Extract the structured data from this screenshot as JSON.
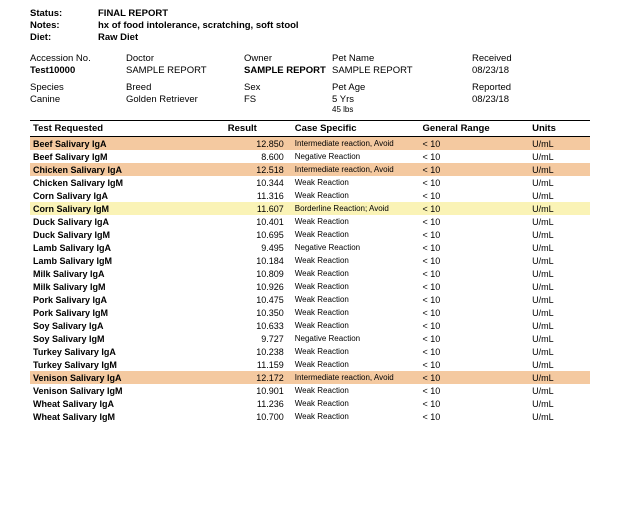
{
  "header": {
    "status_label": "Status:",
    "status_value": "FINAL REPORT",
    "notes_label": "Notes:",
    "notes_value": "hx of food intolerance, scratching, soft stool",
    "diet_label": "Diet:",
    "diet_value": "Raw Diet"
  },
  "info1": {
    "accession_label": "Accession No.",
    "accession_value": "Test10000",
    "doctor_label": "Doctor",
    "doctor_value": "SAMPLE REPORT",
    "owner_label": "Owner",
    "owner_value": "SAMPLE REPORT",
    "pet_name_label": "Pet Name",
    "pet_name_value": "SAMPLE REPORT",
    "received_label": "Received",
    "received_value": "08/23/18"
  },
  "info2": {
    "species_label": "Species",
    "species_value": "Canine",
    "breed_label": "Breed",
    "breed_value": "Golden Retriever",
    "sex_label": "Sex",
    "sex_value": "FS",
    "age_label": "Pet Age",
    "age_value": "5 Yrs",
    "weight_value": "45 lbs",
    "reported_label": "Reported",
    "reported_value": "08/23/18"
  },
  "columns": {
    "test": "Test Requested",
    "result": "Result",
    "case": "Case Specific",
    "general": "General Range",
    "units": "Units"
  },
  "colors": {
    "highlight_orange": "#f4c9a0",
    "highlight_yellow": "#faf3b6",
    "border": "#000000",
    "text": "#000000",
    "background": "#ffffff"
  },
  "rows": [
    {
      "test": "Beef Salivary IgA",
      "result": "12.850",
      "case": "Intermediate reaction, Avoid",
      "general": "< 10",
      "units": "U/mL",
      "hl": "orange"
    },
    {
      "test": "Beef Salivary IgM",
      "result": "8.600",
      "case": "Negative Reaction",
      "general": "< 10",
      "units": "U/mL",
      "hl": ""
    },
    {
      "test": "Chicken Salivary IgA",
      "result": "12.518",
      "case": "Intermediate reaction, Avoid",
      "general": "< 10",
      "units": "U/mL",
      "hl": "orange"
    },
    {
      "test": "Chicken Salivary IgM",
      "result": "10.344",
      "case": "Weak Reaction",
      "general": "< 10",
      "units": "U/mL",
      "hl": ""
    },
    {
      "test": "Corn Salivary IgA",
      "result": "11.316",
      "case": "Weak Reaction",
      "general": "< 10",
      "units": "U/mL",
      "hl": ""
    },
    {
      "test": "Corn Salivary IgM",
      "result": "11.607",
      "case": "Borderline Reaction; Avoid",
      "general": "< 10",
      "units": "U/mL",
      "hl": "yellow"
    },
    {
      "test": "Duck Salivary IgA",
      "result": "10.401",
      "case": "Weak Reaction",
      "general": "< 10",
      "units": "U/mL",
      "hl": ""
    },
    {
      "test": "Duck Salivary IgM",
      "result": "10.695",
      "case": "Weak Reaction",
      "general": "< 10",
      "units": "U/mL",
      "hl": ""
    },
    {
      "test": "Lamb Salivary IgA",
      "result": "9.495",
      "case": "Negative Reaction",
      "general": "< 10",
      "units": "U/mL",
      "hl": ""
    },
    {
      "test": "Lamb Salivary IgM",
      "result": "10.184",
      "case": "Weak Reaction",
      "general": "< 10",
      "units": "U/mL",
      "hl": ""
    },
    {
      "test": "Milk Salivary IgA",
      "result": "10.809",
      "case": "Weak Reaction",
      "general": "< 10",
      "units": "U/mL",
      "hl": ""
    },
    {
      "test": "Milk Salivary IgM",
      "result": "10.926",
      "case": "Weak Reaction",
      "general": "< 10",
      "units": "U/mL",
      "hl": ""
    },
    {
      "test": "Pork Salivary IgA",
      "result": "10.475",
      "case": "Weak Reaction",
      "general": "< 10",
      "units": "U/mL",
      "hl": ""
    },
    {
      "test": "Pork Salivary IgM",
      "result": "10.350",
      "case": "Weak Reaction",
      "general": "< 10",
      "units": "U/mL",
      "hl": ""
    },
    {
      "test": "Soy Salivary IgA",
      "result": "10.633",
      "case": "Weak Reaction",
      "general": "< 10",
      "units": "U/mL",
      "hl": ""
    },
    {
      "test": "Soy Salivary IgM",
      "result": "9.727",
      "case": "Negative Reaction",
      "general": "< 10",
      "units": "U/mL",
      "hl": ""
    },
    {
      "test": "Turkey Salivary IgA",
      "result": "10.238",
      "case": "Weak Reaction",
      "general": "< 10",
      "units": "U/mL",
      "hl": ""
    },
    {
      "test": "Turkey Salivary IgM",
      "result": "11.159",
      "case": "Weak Reaction",
      "general": "< 10",
      "units": "U/mL",
      "hl": ""
    },
    {
      "test": "Venison Salivary IgA",
      "result": "12.172",
      "case": "Intermediate reaction, Avoid",
      "general": "< 10",
      "units": "U/mL",
      "hl": "orange"
    },
    {
      "test": "Venison Salivary IgM",
      "result": "10.901",
      "case": "Weak Reaction",
      "general": "< 10",
      "units": "U/mL",
      "hl": ""
    },
    {
      "test": "Wheat Salivary IgA",
      "result": "11.236",
      "case": "Weak Reaction",
      "general": "< 10",
      "units": "U/mL",
      "hl": ""
    },
    {
      "test": "Wheat Salivary IgM",
      "result": "10.700",
      "case": "Weak Reaction",
      "general": "< 10",
      "units": "U/mL",
      "hl": ""
    }
  ]
}
